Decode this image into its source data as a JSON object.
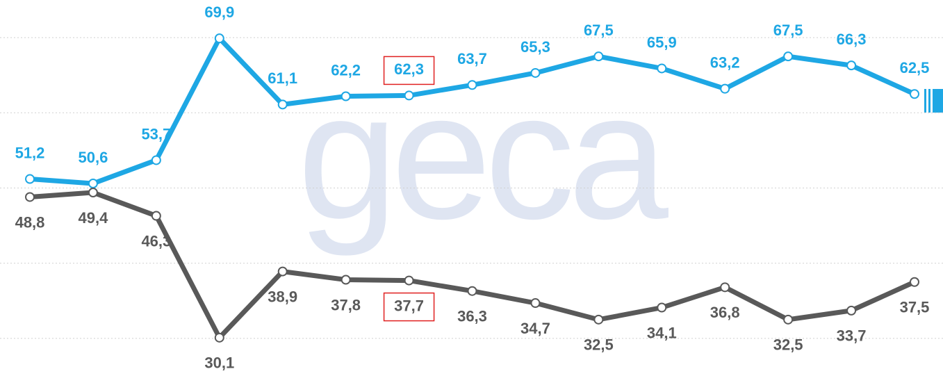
{
  "chart_data": {
    "type": "line",
    "watermark": "geca",
    "categories": [
      null,
      null,
      null,
      null,
      null,
      null,
      null,
      null,
      null,
      null,
      null,
      null,
      null,
      null,
      null
    ],
    "series": [
      {
        "color": "#1ea7e4",
        "values": [
          51.2,
          50.6,
          53.7,
          69.9,
          61.1,
          62.2,
          62.3,
          63.7,
          65.3,
          67.5,
          65.9,
          63.2,
          67.5,
          66.3,
          62.5
        ],
        "value_labels": [
          "51,2",
          "50,6",
          "53,7",
          "69,9",
          "61,1",
          "62,2",
          "62,3",
          "63,7",
          "65,3",
          "67,5",
          "65,9",
          "63,2",
          "67,5",
          "66,3",
          "62,5"
        ]
      },
      {
        "color": "#595959",
        "values": [
          48.8,
          49.4,
          46.3,
          30.1,
          38.9,
          37.8,
          37.7,
          36.3,
          34.7,
          32.5,
          34.1,
          36.8,
          32.5,
          33.7,
          37.5
        ],
        "value_labels": [
          "48,8",
          "49,4",
          "46,3",
          "30,1",
          "38,9",
          "37,8",
          "37,7",
          "36,3",
          "34,7",
          "32,5",
          "34,1",
          "36,8",
          "32,5",
          "33,7",
          "37,5"
        ]
      }
    ],
    "highlight_index": 6,
    "highlight_color": "#e02020",
    "ylim": [
      25,
      75
    ],
    "yticks": [
      30,
      40,
      50,
      60,
      70
    ],
    "grid": true
  }
}
